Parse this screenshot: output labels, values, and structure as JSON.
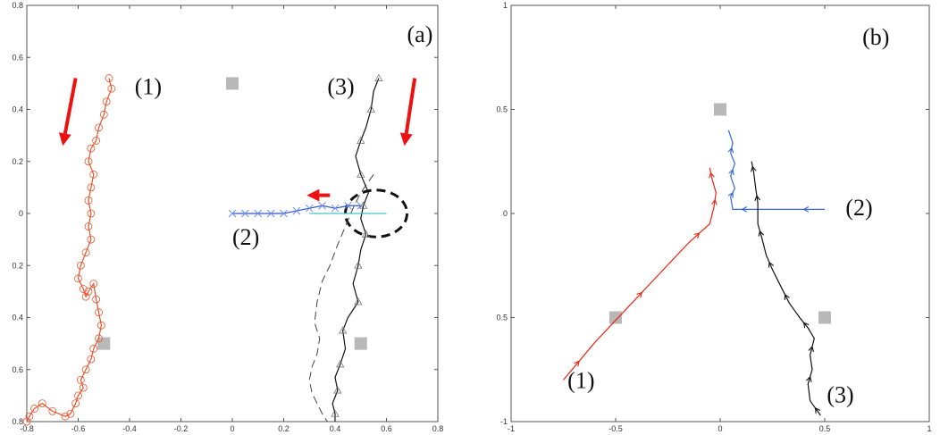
{
  "chart_data": [
    {
      "type": "line",
      "panel_label": "(a)",
      "xlim": [
        -0.8,
        0.8
      ],
      "ylim": [
        -0.8,
        0.8
      ],
      "xticks": [
        "-0.8",
        "-0.6",
        "-0.4",
        "-0.2",
        "0",
        "0.2",
        "0.4",
        "0.6",
        "0.8"
      ],
      "yticks": [
        "0.8",
        "0.6",
        "0.4",
        "0.2",
        "0",
        "0.2",
        "0.4",
        "0.6",
        "0.8"
      ],
      "grid": false,
      "obstacles": [
        [
          0,
          0.5
        ],
        [
          -0.5,
          -0.5
        ],
        [
          0.5,
          -0.5
        ]
      ],
      "series": [
        {
          "label": "(1)",
          "color": "#e8532a",
          "marker": "circle",
          "x": [
            -0.48,
            -0.47,
            -0.49,
            -0.5,
            -0.52,
            -0.53,
            -0.55,
            -0.56,
            -0.54,
            -0.55,
            -0.56,
            -0.55,
            -0.56,
            -0.55,
            -0.57,
            -0.59,
            -0.6,
            -0.58,
            -0.57,
            -0.56,
            -0.54,
            -0.53,
            -0.52,
            -0.51,
            -0.52,
            -0.54,
            -0.55,
            -0.57,
            -0.59,
            -0.58,
            -0.6,
            -0.61,
            -0.63,
            -0.65,
            -0.7,
            -0.74,
            -0.77,
            -0.79,
            -0.8
          ],
          "y": [
            0.52,
            0.48,
            0.43,
            0.38,
            0.33,
            0.28,
            0.25,
            0.2,
            0.15,
            0.1,
            0.05,
            0.0,
            -0.05,
            -0.1,
            -0.15,
            -0.2,
            -0.25,
            -0.29,
            -0.32,
            -0.3,
            -0.27,
            -0.33,
            -0.38,
            -0.43,
            -0.48,
            -0.52,
            -0.56,
            -0.6,
            -0.64,
            -0.67,
            -0.7,
            -0.73,
            -0.77,
            -0.78,
            -0.76,
            -0.73,
            -0.75,
            -0.78,
            -0.8
          ]
        },
        {
          "label": "(2)",
          "color": "#3355cc",
          "marker": "x",
          "x": [
            0.5,
            0.45,
            0.4,
            0.35,
            0.3,
            0.25,
            0.2,
            0.15,
            0.1,
            0.05,
            0.0
          ],
          "y": [
            0.03,
            0.03,
            0.02,
            0.03,
            0.02,
            0.01,
            0.0,
            0.0,
            0.0,
            0.0,
            0.0
          ]
        },
        {
          "label": "(3)",
          "color": "#111111",
          "marker": "triangle",
          "x": [
            0.57,
            0.55,
            0.54,
            0.52,
            0.5,
            0.48,
            0.5,
            0.53,
            0.51,
            0.5,
            0.52,
            0.5,
            0.49,
            0.47,
            0.49,
            0.45,
            0.43,
            0.44,
            0.42,
            0.4,
            0.41,
            0.39,
            0.4,
            0.4
          ],
          "y": [
            0.52,
            0.47,
            0.4,
            0.33,
            0.28,
            0.22,
            0.15,
            0.08,
            0.03,
            -0.02,
            -0.08,
            -0.14,
            -0.2,
            -0.27,
            -0.34,
            -0.4,
            -0.45,
            -0.52,
            -0.58,
            -0.63,
            -0.68,
            -0.73,
            -0.77,
            -0.8
          ]
        },
        {
          "label": "",
          "color": "#444444",
          "marker": "dash",
          "x": [
            0.55,
            0.5,
            0.47,
            0.44,
            0.41,
            0.38,
            0.35,
            0.33,
            0.32,
            0.34,
            0.33,
            0.31,
            0.3,
            0.31,
            0.33,
            0.35,
            0.37
          ],
          "y": [
            0.15,
            0.08,
            0.02,
            -0.05,
            -0.12,
            -0.2,
            -0.26,
            -0.34,
            -0.42,
            -0.48,
            -0.54,
            -0.59,
            -0.64,
            -0.69,
            -0.73,
            -0.77,
            -0.8
          ]
        },
        {
          "label": "",
          "color": "#40c4c4",
          "marker": "",
          "x": [
            0.3,
            0.45,
            0.6
          ],
          "y": [
            0.0,
            0.0,
            0.0
          ]
        }
      ],
      "arrows": [
        {
          "color": "#ee1111",
          "from": [
            -0.61,
            0.52
          ],
          "to": [
            -0.66,
            0.26
          ]
        },
        {
          "color": "#ee1111",
          "from": [
            0.38,
            0.07
          ],
          "to": [
            0.29,
            0.07
          ]
        },
        {
          "color": "#ee1111",
          "from": [
            0.71,
            0.52
          ],
          "to": [
            0.67,
            0.26
          ]
        }
      ],
      "ellipse": {
        "cx": 0.56,
        "cy": 0.0,
        "rx": 0.12,
        "ry": 0.09
      },
      "annotations": [
        {
          "text": "(1)",
          "x": -0.38,
          "y": 0.49
        },
        {
          "text": "(2)",
          "x": 0.0,
          "y": -0.09
        },
        {
          "text": "(3)",
          "x": 0.37,
          "y": 0.49
        },
        {
          "text": "(a)",
          "x": 0.68,
          "y": 0.69
        }
      ]
    },
    {
      "type": "line",
      "panel_label": "(b)",
      "xlim": [
        -1,
        1
      ],
      "ylim": [
        -1,
        1
      ],
      "xticks": [
        "-1",
        "-0.5",
        "0",
        "0.5",
        "1"
      ],
      "yticks": [
        "1",
        "0.5",
        "0",
        "0.5",
        "-1"
      ],
      "grid": false,
      "obstacles": [
        [
          0,
          0.5
        ],
        [
          -0.5,
          -0.5
        ],
        [
          0.5,
          -0.5
        ]
      ],
      "series": [
        {
          "label": "(1)",
          "color": "#ee2211",
          "marker": "arrowhead",
          "x": [
            -0.75,
            -0.6,
            -0.45,
            -0.3,
            -0.15,
            -0.05,
            -0.03,
            -0.02,
            -0.04,
            -0.05
          ],
          "y": [
            -0.8,
            -0.62,
            -0.46,
            -0.3,
            -0.14,
            -0.05,
            0.03,
            0.1,
            0.17,
            0.22
          ]
        },
        {
          "label": "(2)",
          "color": "#3366dd",
          "marker": "arrowhead",
          "x": [
            0.5,
            0.3,
            0.15,
            0.06,
            0.05,
            0.07,
            0.05,
            0.07,
            0.05,
            0.06,
            0.04
          ],
          "y": [
            0.02,
            0.02,
            0.02,
            0.02,
            0.08,
            0.12,
            0.18,
            0.24,
            0.29,
            0.34,
            0.4
          ]
        },
        {
          "label": "(3)",
          "color": "#111111",
          "marker": "arrowhead",
          "x": [
            0.48,
            0.43,
            0.42,
            0.44,
            0.43,
            0.45,
            0.42,
            0.38,
            0.33,
            0.29,
            0.25,
            0.22,
            0.2,
            0.18,
            0.18,
            0.17,
            0.16,
            0.15
          ],
          "y": [
            -0.97,
            -0.9,
            -0.82,
            -0.75,
            -0.68,
            -0.6,
            -0.55,
            -0.5,
            -0.43,
            -0.35,
            -0.27,
            -0.2,
            -0.12,
            -0.05,
            0.05,
            0.12,
            0.2,
            0.25
          ]
        }
      ],
      "annotations": [
        {
          "text": "(1)",
          "x": -0.73,
          "y": -0.8
        },
        {
          "text": "(2)",
          "x": 0.6,
          "y": 0.03
        },
        {
          "text": "(3)",
          "x": 0.51,
          "y": -0.87
        },
        {
          "text": "(b)",
          "x": 0.68,
          "y": 0.85
        }
      ]
    }
  ]
}
